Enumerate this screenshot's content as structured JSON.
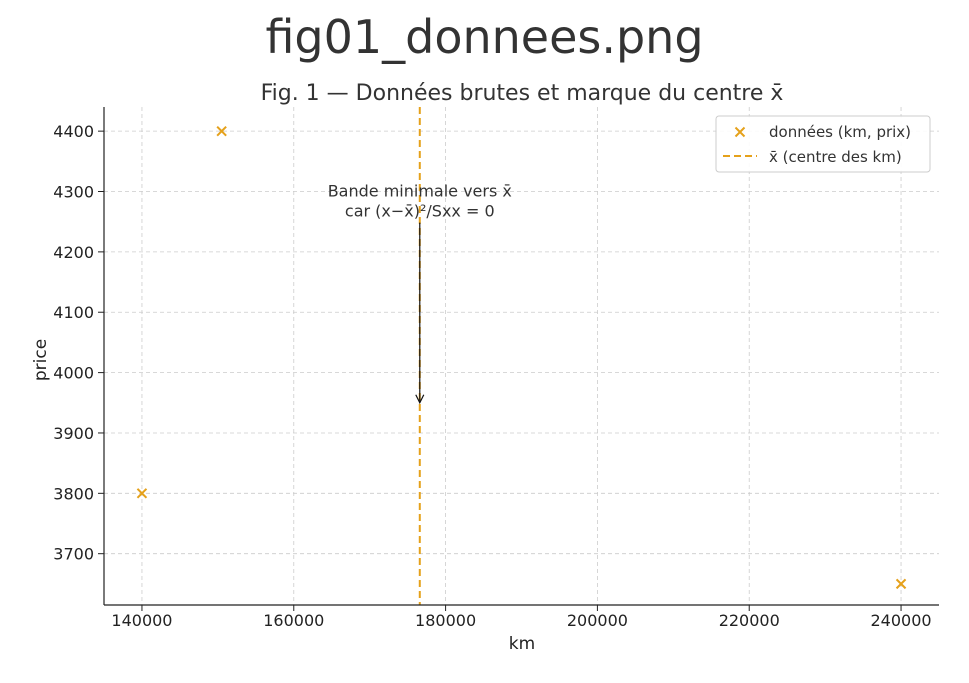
{
  "figure_title": "fig01_donnees.png",
  "chart_data": {
    "type": "scatter",
    "title": "Fig. 1 — Données brutes et marque du centre x̄",
    "xlabel": "km",
    "ylabel": "price",
    "xlim": [
      135000,
      245000
    ],
    "ylim": [
      3615,
      4440
    ],
    "xticks": [
      140000,
      160000,
      180000,
      200000,
      220000,
      240000
    ],
    "yticks": [
      3700,
      3800,
      3900,
      4000,
      4100,
      4200,
      4300,
      4400
    ],
    "grid": true,
    "legend_position": "top-right",
    "series": [
      {
        "name": "données (km, prix)",
        "marker": "x",
        "color": "#E5A11B",
        "points": [
          {
            "x": 140000,
            "y": 3800
          },
          {
            "x": 150500,
            "y": 4400
          },
          {
            "x": 240000,
            "y": 3650
          }
        ]
      }
    ],
    "vline": {
      "name": "x̄ (centre des km)",
      "x": 176600,
      "color": "#E5A11B",
      "style": "dashed"
    },
    "annotation": {
      "lines": [
        "Bande minimale vers x̄",
        "car (x−x̄)²/Sxx = 0"
      ],
      "text_x": 176600,
      "text_y": 4265,
      "arrow_to_x": 176600,
      "arrow_to_y": 3950
    }
  }
}
